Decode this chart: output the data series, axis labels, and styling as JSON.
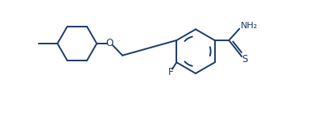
{
  "line_color": "#1a3a6e",
  "background_color": "#ffffff",
  "bond_lw": 1.4,
  "figsize": [
    3.85,
    1.5
  ],
  "dpi": 100,
  "xlim": [
    0,
    7.7
  ],
  "ylim": [
    -0.5,
    3.0
  ]
}
